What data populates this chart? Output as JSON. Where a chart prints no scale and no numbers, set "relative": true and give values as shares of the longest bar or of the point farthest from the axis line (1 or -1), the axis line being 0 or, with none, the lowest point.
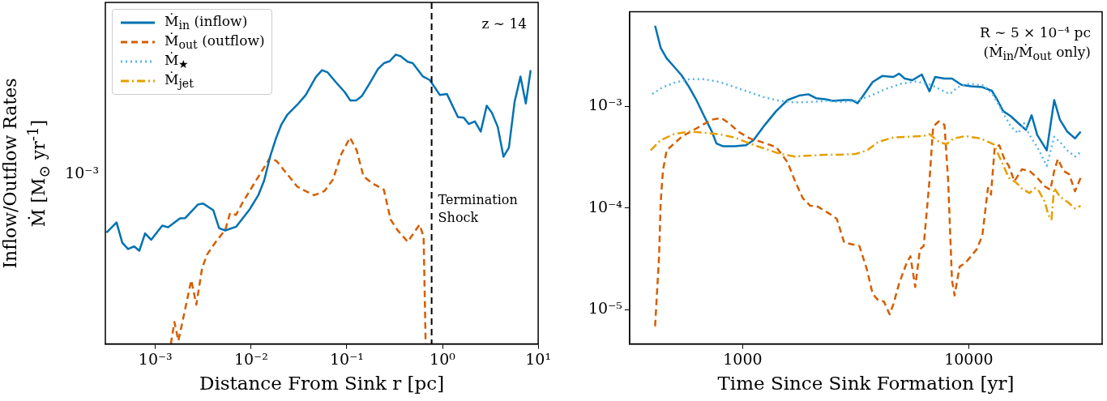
{
  "chart_data": [
    {
      "type": "line",
      "relative": true,
      "xlabel": "Distance From Sink r [pc]",
      "ylabel": "Inflow/Outflow Rates\nṀ [M$_{⊙}$ yr$^{-1}$]",
      "log": "x",
      "xlim": [
        0.0003,
        10
      ],
      "xticks": [
        {
          "value": 0.001,
          "label": "10⁻³"
        },
        {
          "value": 0.01,
          "label": "10⁻²"
        },
        {
          "value": 0.1,
          "label": "10⁻¹"
        },
        {
          "value": 1,
          "label": "10⁰"
        },
        {
          "value": 10,
          "label": "10¹"
        }
      ],
      "legend": "top left",
      "annotations": [
        "z ∼ 14",
        "10⁻³"
      ],
      "ref_lines": [
        {
          "axis": "x",
          "value": 0.77,
          "label": "Termination Shock",
          "color": "#000000",
          "line_style": "dashed"
        }
      ],
      "series": [
        {
          "name": "Ṁ$_{in}$ (inflow)",
          "color": "#0072b2",
          "line_style": "solid",
          "x": [
            0.000308,
            0.000393,
            0.000451,
            0.000518,
            0.000601,
            0.000679,
            0.00078,
            0.000903,
            0.00118,
            0.00136,
            0.00181,
            0.00205,
            0.00279,
            0.00316,
            0.00403,
            0.00463,
            0.00537,
            0.00697,
            0.00966,
            0.0119,
            0.0137,
            0.0158,
            0.0181,
            0.0207,
            0.0238,
            0.0303,
            0.0372,
            0.0475,
            0.0551,
            0.0632,
            0.0776,
            0.0953,
            0.109,
            0.125,
            0.144,
            0.169,
            0.212,
            0.244,
            0.281,
            0.325,
            0.367,
            0.433,
            0.489,
            0.625,
            0.736,
            0.94,
            1.11,
            1.45,
            1.67,
            1.88,
            2.18,
            2.51,
            2.9,
            3.28,
            3.78,
            4.34,
            4.94,
            5.68,
            6.53,
            7.43,
            8.34
          ],
          "values": [
            0.385,
            0.42,
            0.35,
            0.328,
            0.337,
            0.322,
            0.382,
            0.36,
            0.409,
            0.403,
            0.434,
            0.435,
            0.482,
            0.485,
            0.462,
            0.4,
            0.392,
            0.405,
            0.465,
            0.514,
            0.565,
            0.647,
            0.708,
            0.758,
            0.791,
            0.826,
            0.86,
            0.922,
            0.946,
            0.938,
            0.903,
            0.87,
            0.841,
            0.841,
            0.857,
            0.894,
            0.95,
            0.97,
            0.977,
            1,
            0.994,
            0.975,
            0.97,
            0.924,
            0.912,
            0.86,
            0.864,
            0.784,
            0.782,
            0.76,
            0.769,
            0.734,
            0.823,
            0.799,
            0.75,
            0.647,
            0.678,
            0.838,
            0.924,
            0.831,
            0.946
          ]
        },
        {
          "name": "Ṁ$_{out}$ (outflow)",
          "color": "#d55e00",
          "line_style": "dashed",
          "x": [
            0.00145,
            0.00158,
            0.00174,
            0.00237,
            0.00268,
            0.00308,
            0.00348,
            0.00428,
            0.00537,
            0.00603,
            0.00697,
            0.0082,
            0.0101,
            0.0124,
            0.0158,
            0.0186,
            0.0238,
            0.0303,
            0.0372,
            0.0457,
            0.0583,
            0.0716,
            0.0879,
            0.108,
            0.127,
            0.149,
            0.183,
            0.244,
            0.287,
            0.338,
            0.433,
            0.575,
            0.635,
            0.667
          ],
          "values": [
            0,
            0.076,
            0.011,
            0.22,
            0.136,
            0.263,
            0.31,
            0.353,
            0.394,
            0.452,
            0.446,
            0.49,
            0.539,
            0.587,
            0.644,
            0.631,
            0.587,
            0.544,
            0.528,
            0.514,
            0.528,
            0.568,
            0.657,
            0.713,
            0.669,
            0.58,
            0.556,
            0.533,
            0.43,
            0.394,
            0.353,
            0.412,
            0.371,
            0
          ]
        },
        {
          "name": "Ṁ$_{★}$",
          "color": "#56b4e9",
          "line_style": "dotted"
        },
        {
          "name": "Ṁ$_{jet}$",
          "color": "#e69f00",
          "line_style": "dashdot"
        }
      ]
    },
    {
      "type": "line",
      "xlabel": "Time Since Sink Formation [yr]",
      "log": "xy",
      "xlim": [
        316,
        38900
      ],
      "ylim": [
        4.6e-06,
        0.0085
      ],
      "xticks": [
        1000,
        10000
      ],
      "yticks": [
        {
          "value": 1e-05,
          "label": "10⁻⁵"
        },
        {
          "value": 0.0001,
          "label": "10⁻⁴"
        },
        {
          "value": 0.001,
          "label": "10⁻³"
        }
      ],
      "annotations": [
        "R ∼ 5 × 10⁻⁴ pc",
        "(Ṁ$_{in}$/Ṁ$_{out}$ only)"
      ],
      "series": [
        {
          "color": "#56b4e9",
          "line_style": "dotted",
          "x": [
            398,
            444,
            498,
            580,
            676,
            790,
            922,
            1075,
            1254,
            1463,
            1706,
            1991,
            2323,
            2710,
            3160,
            3686,
            4300,
            5016,
            5850,
            6823,
            7660,
            8270,
            8940,
            10030,
            11700,
            12880,
            14190,
            15350,
            16560,
            17540,
            18570,
            20090,
            22130,
            23880,
            25290,
            27290,
            29510,
            31260
          ],
          "values": [
            0.00132,
            0.00154,
            0.0017,
            0.00184,
            0.00184,
            0.00173,
            0.00154,
            0.00137,
            0.00122,
            0.00113,
            0.00109,
            0.0011,
            0.00113,
            0.0011,
            0.00113,
            0.00127,
            0.00148,
            0.00166,
            0.00175,
            0.00162,
            0.00142,
            0.00132,
            0.00154,
            0.00166,
            0.0016,
            0.00127,
            0.000861,
            0.000632,
            0.000541,
            0.000682,
            0.000521,
            0.000397,
            0.00026,
            0.000501,
            0.000446,
            0.000368,
            0.00032,
            0.000354
          ]
        },
        {
          "color": "#e69f00",
          "line_style": "dashdot",
          "x": [
            392,
            434,
            498,
            580,
            676,
            790,
            922,
            1075,
            1254,
            1463,
            1706,
            1991,
            2323,
            2710,
            3160,
            3548,
            3981,
            4645,
            5420,
            6320,
            6700,
            7380,
            7960,
            8590,
            9660,
            11270,
            12880,
            13910,
            15030,
            16230,
            17190,
            18570,
            19680,
            20460,
            21680,
            22520,
            23220,
            23880,
            25290,
            27290,
            29510,
            31260
          ],
          "values": [
            0.000368,
            0.000464,
            0.000533,
            0.000562,
            0.00055,
            0.000529,
            0.000493,
            0.00043,
            0.000382,
            0.00034,
            0.00032,
            0.000327,
            0.000333,
            0.000333,
            0.00034,
            0.000368,
            0.000446,
            0.000493,
            0.000501,
            0.000509,
            0.000533,
            0.000446,
            0.000423,
            0.000482,
            0.000509,
            0.000482,
            0.000423,
            0.000292,
            0.000198,
            0.000177,
            0.000155,
            0.00014,
            0.000157,
            0.000146,
            0.000115,
            8.47e-05,
            7.72e-05,
            0.000157,
            0.000129,
            0.000115,
            9.89e-05,
            0.000105
          ]
        },
        {
          "color": "#d55e00",
          "line_style": "dashed",
          "x": [
            410,
            427,
            434,
            444,
            461,
            537,
            627,
            731,
            805,
            870,
            958,
            1075,
            1207,
            1407,
            1580,
            1706,
            1844,
            1991,
            2150,
            2414,
            2607,
            2812,
            3041,
            3283,
            3548,
            3758,
            3981,
            4217,
            4467,
            4645,
            4920,
            5310,
            5520,
            5800,
            6080,
            6320,
            6700,
            6960,
            7380,
            7810,
            8110,
            8430,
            8660,
            9110,
            9660,
            10230,
            10830,
            11480,
            12160,
            12540,
            13030,
            13650,
            14460,
            15030,
            15920,
            17190,
            18570,
            20090,
            21680,
            22960,
            23880,
            24780,
            26260,
            27810,
            29510,
            31260
          ],
          "values": [
            6.87e-06,
            3.35e-05,
            0.000115,
            0.000231,
            0.000368,
            0.000501,
            0.000608,
            0.000738,
            0.000766,
            0.000682,
            0.000562,
            0.000482,
            0.000446,
            0.000397,
            0.000281,
            0.000183,
            0.000125,
            0.000105,
            0.000103,
            8.81e-05,
            7.84e-05,
            4.56e-05,
            4.39e-05,
            4.23e-05,
            2.46e-05,
            1.43e-05,
            1.23e-05,
            1.2e-05,
            8.99e-06,
            1.14e-05,
            1.81e-05,
            2.87e-05,
            3.35e-05,
            1.67e-05,
            3.91e-05,
            4.23e-05,
            0.000183,
            0.000632,
            0.00071,
            0.000656,
            0.000183,
            1.95e-05,
            1.38e-05,
            2.65e-05,
            2.87e-05,
            3.35e-05,
            3.91e-05,
            5.32e-05,
            0.000157,
            0.000135,
            0.000397,
            0.000413,
            0.000292,
            0.00026,
            0.000183,
            0.00024,
            0.000231,
            0.000198,
            0.000163,
            0.000151,
            0.000231,
            0.000303,
            0.000231,
            0.000214,
            0.000146,
            0.000198
          ]
        },
        {
          "color": "#0072b2",
          "line_style": "solid",
          "x": [
            410,
            434,
            461,
            498,
            537,
            580,
            627,
            676,
            731,
            766,
            820,
            922,
            1035,
            1117,
            1254,
            1407,
            1580,
            1774,
            1954,
            2109,
            2323,
            2506,
            2812,
            3041,
            3221,
            3412,
            3758,
            4140,
            4645,
            4920,
            5210,
            5630,
            6200,
            6700,
            7100,
            7820,
            8430,
            9290,
            10230,
            11480,
            12650,
            13390,
            14190,
            15350,
            16560,
            17900,
            18970,
            20090,
            22130,
            23880,
            25290,
            27290,
            29510,
            31260
          ],
          "values": [
            0.00618,
            0.00374,
            0.00296,
            0.00244,
            0.00201,
            0.00154,
            0.00113,
            0.000797,
            0.000562,
            0.00043,
            0.000404,
            0.000404,
            0.000413,
            0.000464,
            0.000656,
            0.000895,
            0.00115,
            0.00127,
            0.00131,
            0.0012,
            0.00117,
            0.00113,
            0.00115,
            0.00115,
            0.00107,
            0.00127,
            0.00173,
            0.00198,
            0.00194,
            0.00209,
            0.00187,
            0.0018,
            0.00205,
            0.0014,
            0.00194,
            0.00187,
            0.00187,
            0.00162,
            0.00157,
            0.00154,
            0.00142,
            0.00115,
            0.000895,
            0.000797,
            0.000682,
            0.000585,
            0.000815,
            0.000521,
            0.000368,
            0.00115,
            0.000738,
            0.000562,
            0.000482,
            0.000562
          ]
        }
      ]
    }
  ]
}
